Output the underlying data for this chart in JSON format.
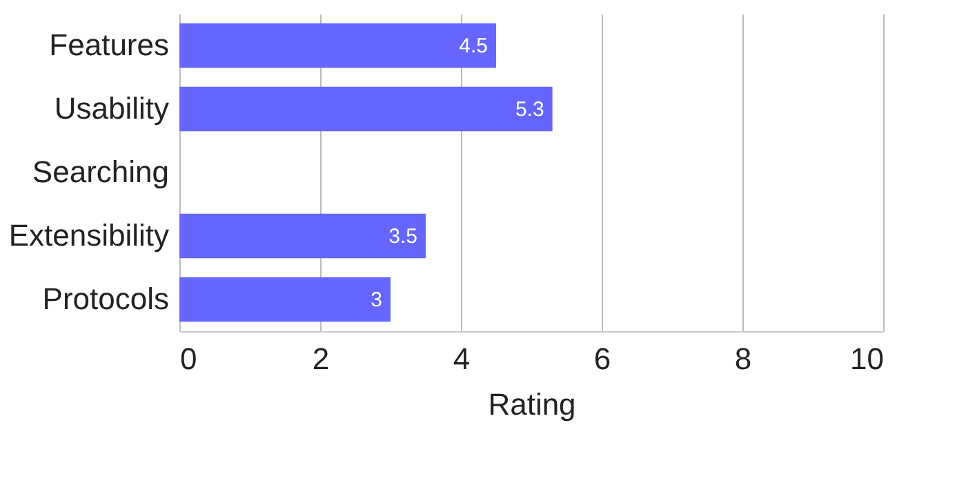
{
  "chart_data": {
    "type": "bar",
    "orientation": "horizontal",
    "xlabel": "Rating",
    "categories": [
      "Features",
      "Usability",
      "Searching",
      "Extensibility",
      "Protocols"
    ],
    "values": [
      4.5,
      5.3,
      null,
      3.5,
      3
    ],
    "color": "#6666ff",
    "xlim": [
      0,
      10
    ],
    "xticks": [
      0,
      2,
      4,
      6,
      8,
      10
    ],
    "grid": "x",
    "data_labels": true
  }
}
